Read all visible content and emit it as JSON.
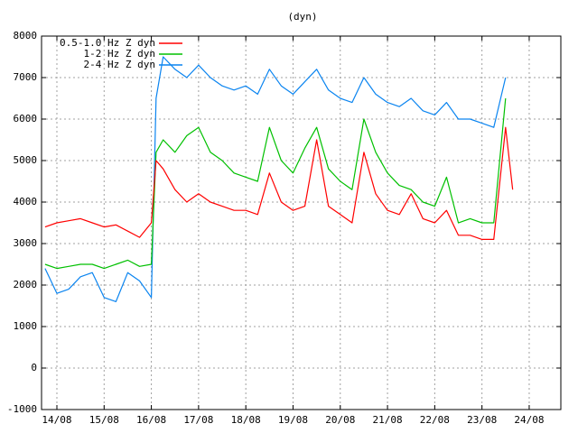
{
  "chart_data": {
    "type": "line",
    "title": "(dyn)",
    "x": [
      13.75,
      14.0,
      14.25,
      14.5,
      14.75,
      15.0,
      15.25,
      15.5,
      15.75,
      16.0,
      16.1,
      16.25,
      16.5,
      16.75,
      17.0,
      17.25,
      17.5,
      17.75,
      18.0,
      18.25,
      18.5,
      18.75,
      19.0,
      19.25,
      19.5,
      19.75,
      20.0,
      20.25,
      20.5,
      20.75,
      21.0,
      21.25,
      21.5,
      21.75,
      22.0,
      22.25,
      22.5,
      22.75,
      23.0,
      23.25,
      23.5,
      23.65
    ],
    "series": [
      {
        "name": "0.5-1.0 Hz Z dyn",
        "color": "#ff0000",
        "values": [
          3400,
          3500,
          3550,
          3600,
          3500,
          3400,
          3450,
          3300,
          3150,
          3500,
          5000,
          4800,
          4300,
          4000,
          4200,
          4000,
          3900,
          3800,
          3800,
          3700,
          4700,
          4000,
          3800,
          3900,
          5500,
          3900,
          3700,
          3500,
          5200,
          4200,
          3800,
          3700,
          4200,
          3600,
          3500,
          3800,
          3200,
          3200,
          3100,
          3100,
          5800,
          4300
        ]
      },
      {
        "name": "1-2 Hz Z dyn",
        "color": "#00c000",
        "values": [
          2500,
          2400,
          2450,
          2500,
          2500,
          2400,
          2500,
          2600,
          2450,
          2500,
          5200,
          5500,
          5200,
          5600,
          5800,
          5200,
          5000,
          4700,
          4600,
          4500,
          5800,
          5000,
          4700,
          5300,
          5800,
          4800,
          4500,
          4300,
          6000,
          5200,
          4700,
          4400,
          4300,
          4000,
          3900,
          4600,
          3500,
          3600,
          3500,
          3500,
          6500,
          null
        ]
      },
      {
        "name": "2-4 Hz Z dyn",
        "color": "#0a84f0",
        "values": [
          2400,
          1800,
          1900,
          2200,
          2300,
          1700,
          1600,
          2300,
          2100,
          1700,
          6500,
          7500,
          7200,
          7000,
          7300,
          7000,
          6800,
          6700,
          6800,
          6600,
          7200,
          6800,
          6600,
          6900,
          7200,
          6700,
          6500,
          6400,
          7000,
          6600,
          6400,
          6300,
          6500,
          6200,
          6100,
          6400,
          6000,
          6000,
          5900,
          5800,
          7000,
          null
        ]
      }
    ],
    "xlim": [
      13.675,
      24.67
    ],
    "xticks": [
      {
        "value": 14,
        "label": "14/08"
      },
      {
        "value": 15,
        "label": "15/08"
      },
      {
        "value": 16,
        "label": "16/08"
      },
      {
        "value": 17,
        "label": "17/08"
      },
      {
        "value": 18,
        "label": "18/08"
      },
      {
        "value": 19,
        "label": "19/08"
      },
      {
        "value": 20,
        "label": "20/08"
      },
      {
        "value": 21,
        "label": "21/08"
      },
      {
        "value": 22,
        "label": "22/08"
      },
      {
        "value": 23,
        "label": "23/08"
      },
      {
        "value": 24,
        "label": "24/08"
      }
    ],
    "ylim": [
      -1000,
      8000
    ],
    "yticks": [
      -1000,
      0,
      1000,
      2000,
      3000,
      4000,
      5000,
      6000,
      7000,
      8000
    ],
    "grid": true,
    "legend": "top-left"
  }
}
